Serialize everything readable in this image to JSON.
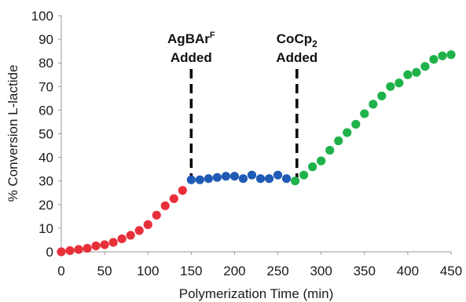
{
  "chart_data": {
    "type": "scatter",
    "xlabel": "Polymerization Time (min)",
    "ylabel": "% Conversion L-lactide",
    "xlim": [
      0,
      450
    ],
    "ylim": [
      0,
      100
    ],
    "xticks": [
      "0",
      "50",
      "100",
      "150",
      "200",
      "250",
      "300",
      "350",
      "400",
      "450"
    ],
    "yticks": [
      "0",
      "10",
      "20",
      "30",
      "40",
      "50",
      "60",
      "70",
      "80",
      "90",
      "100"
    ],
    "grid": false,
    "legend": "none",
    "series": [
      {
        "color": "#e8303a",
        "points": [
          [
            0,
            0
          ],
          [
            10,
            0.5
          ],
          [
            20,
            1
          ],
          [
            30,
            1.5
          ],
          [
            40,
            2.5
          ],
          [
            50,
            3
          ],
          [
            60,
            4
          ],
          [
            70,
            5.5
          ],
          [
            80,
            7
          ],
          [
            90,
            9
          ],
          [
            100,
            11.5
          ],
          [
            110,
            15.5
          ],
          [
            120,
            19.5
          ],
          [
            130,
            22.5
          ],
          [
            140,
            26
          ]
        ]
      },
      {
        "color": "#1f5bb5",
        "points": [
          [
            150,
            30.5
          ],
          [
            160,
            30.5
          ],
          [
            170,
            31
          ],
          [
            180,
            31.5
          ],
          [
            190,
            32
          ],
          [
            200,
            32
          ],
          [
            210,
            31
          ],
          [
            220,
            32.5
          ],
          [
            230,
            31
          ],
          [
            240,
            31
          ],
          [
            250,
            32.5
          ],
          [
            260,
            31
          ]
        ]
      },
      {
        "color": "#1fb24a",
        "points": [
          [
            270,
            30
          ],
          [
            280,
            32.5
          ],
          [
            290,
            36
          ],
          [
            300,
            38.5
          ],
          [
            310,
            43
          ],
          [
            320,
            47
          ],
          [
            330,
            50.5
          ],
          [
            340,
            54
          ],
          [
            350,
            58.5
          ],
          [
            360,
            62.5
          ],
          [
            370,
            66
          ],
          [
            380,
            70
          ],
          [
            390,
            71.5
          ],
          [
            400,
            75
          ],
          [
            410,
            76
          ],
          [
            420,
            78.5
          ],
          [
            430,
            81.5
          ],
          [
            440,
            83
          ],
          [
            450,
            83.5
          ]
        ]
      }
    ],
    "annotations": [
      {
        "x": 150,
        "line1": "AgBAr",
        "line1_sup": "F",
        "line2": "Added"
      },
      {
        "x": 272,
        "line1": "CoCp",
        "line1_sub": "2",
        "line2": "Added"
      }
    ]
  }
}
